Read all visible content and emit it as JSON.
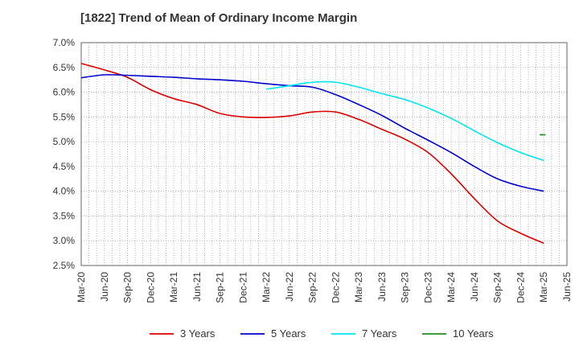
{
  "chart_data": {
    "type": "line",
    "title": "[1822]  Trend of Mean of Ordinary Income Margin",
    "xlabel": "",
    "ylabel": "",
    "x_categories": [
      "Mar-20",
      "Jun-20",
      "Sep-20",
      "Dec-20",
      "Mar-21",
      "Jun-21",
      "Sep-21",
      "Dec-21",
      "Mar-22",
      "Jun-22",
      "Sep-22",
      "Dec-22",
      "Mar-23",
      "Jun-23",
      "Sep-23",
      "Dec-23",
      "Mar-24",
      "Jun-24",
      "Sep-24",
      "Dec-24",
      "Mar-25",
      "Jun-25"
    ],
    "y_ticks": [
      "7.0%",
      "6.5%",
      "6.0%",
      "5.5%",
      "5.0%",
      "4.5%",
      "4.0%",
      "3.5%",
      "3.0%",
      "2.5%"
    ],
    "ylim": [
      2.5,
      7.0
    ],
    "grid": true,
    "legend_position": "bottom",
    "series": [
      {
        "name": "3 Years",
        "color": "#dd0000",
        "values": [
          6.58,
          6.45,
          6.3,
          6.05,
          5.87,
          5.75,
          5.57,
          5.5,
          5.49,
          5.52,
          5.6,
          5.6,
          5.45,
          5.25,
          5.05,
          4.78,
          4.35,
          3.85,
          3.4,
          3.15,
          2.95,
          null
        ]
      },
      {
        "name": "5 Years",
        "color": "#0000cc",
        "values": [
          6.29,
          6.35,
          6.34,
          6.32,
          6.3,
          6.27,
          6.25,
          6.22,
          6.17,
          6.13,
          6.1,
          5.95,
          5.75,
          5.53,
          5.27,
          5.03,
          4.78,
          4.5,
          4.25,
          4.1,
          4.0,
          null
        ]
      },
      {
        "name": "7 Years",
        "color": "#00e5ee",
        "values": [
          null,
          null,
          null,
          null,
          null,
          null,
          null,
          null,
          6.06,
          6.13,
          6.2,
          6.2,
          6.1,
          5.97,
          5.85,
          5.68,
          5.47,
          5.22,
          4.98,
          4.78,
          4.62,
          null
        ]
      },
      {
        "name": "10 Years",
        "color": "#228b22",
        "values": [
          null,
          null,
          null,
          null,
          null,
          null,
          null,
          null,
          null,
          null,
          null,
          null,
          null,
          null,
          null,
          null,
          null,
          null,
          null,
          null,
          5.14,
          null
        ]
      }
    ]
  }
}
